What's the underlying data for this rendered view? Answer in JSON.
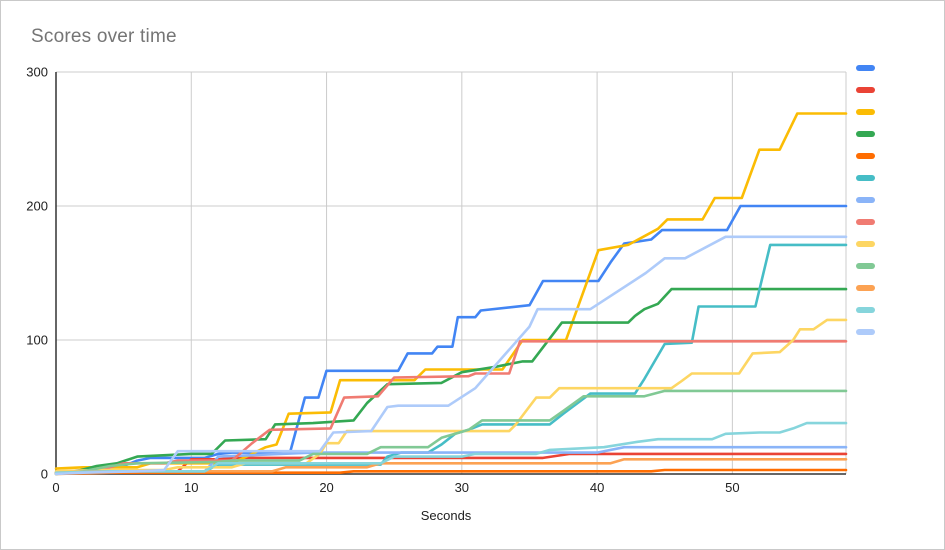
{
  "window": {
    "background": "#ffffff",
    "border_color": "#c9c9c9"
  },
  "chart_data": {
    "type": "line",
    "title": "Scores over time",
    "title_color": "#757575",
    "xlabel": "Seconds",
    "ylabel": "",
    "x_ticks": [
      0,
      10,
      20,
      30,
      40,
      50
    ],
    "y_ticks": [
      0,
      100,
      200,
      300
    ],
    "xlim": [
      0,
      58.4
    ],
    "ylim": [
      0,
      300
    ],
    "grid": true,
    "gridline_color": "#cccccc",
    "axis_line_color": "#333333",
    "tick_label_color": "#222222",
    "legend_position": "right",
    "legend_labels_visible": false,
    "series": [
      {
        "name": "series-01-blue",
        "color": "#4285F4",
        "points": [
          [
            0,
            1
          ],
          [
            3,
            4
          ],
          [
            5,
            6
          ],
          [
            6,
            10
          ],
          [
            7,
            12
          ],
          [
            11,
            12
          ],
          [
            12,
            15
          ],
          [
            13,
            16
          ],
          [
            17.3,
            16
          ],
          [
            18.4,
            57
          ],
          [
            19.4,
            57
          ],
          [
            20,
            77
          ],
          [
            25.3,
            77
          ],
          [
            26,
            90
          ],
          [
            27.8,
            90
          ],
          [
            28.2,
            95
          ],
          [
            29.3,
            95
          ],
          [
            29.7,
            117
          ],
          [
            31,
            117
          ],
          [
            31.4,
            122
          ],
          [
            35,
            126
          ],
          [
            36,
            144
          ],
          [
            40.1,
            144
          ],
          [
            41,
            158
          ],
          [
            42,
            172
          ],
          [
            44,
            175
          ],
          [
            44.8,
            182
          ],
          [
            49.6,
            182
          ],
          [
            50.6,
            200
          ],
          [
            58.4,
            200
          ]
        ]
      },
      {
        "name": "series-02-red",
        "color": "#EA4335",
        "points": [
          [
            0,
            1
          ],
          [
            4,
            1
          ],
          [
            5,
            2
          ],
          [
            9,
            2
          ],
          [
            10,
            11
          ],
          [
            12,
            11
          ],
          [
            13,
            12
          ],
          [
            36,
            12
          ],
          [
            38,
            15
          ],
          [
            58.4,
            15
          ]
        ]
      },
      {
        "name": "series-03-yellow",
        "color": "#FBBC04",
        "points": [
          [
            0,
            4
          ],
          [
            2,
            5
          ],
          [
            6,
            5
          ],
          [
            7,
            8
          ],
          [
            13,
            8
          ],
          [
            14.5,
            15
          ],
          [
            15.5,
            20
          ],
          [
            16.3,
            22
          ],
          [
            17.2,
            45
          ],
          [
            20.3,
            46
          ],
          [
            21,
            70
          ],
          [
            26.5,
            70
          ],
          [
            27.3,
            78
          ],
          [
            33,
            78
          ],
          [
            34.5,
            100
          ],
          [
            37.7,
            100
          ],
          [
            40.1,
            167
          ],
          [
            42.3,
            171
          ],
          [
            44.5,
            183
          ],
          [
            45.2,
            190
          ],
          [
            47.8,
            190
          ],
          [
            48.7,
            206
          ],
          [
            50.7,
            206
          ],
          [
            52,
            242
          ],
          [
            53.5,
            242
          ],
          [
            54.8,
            269
          ],
          [
            58.4,
            269
          ]
        ]
      },
      {
        "name": "series-04-green",
        "color": "#34A853",
        "points": [
          [
            0,
            0
          ],
          [
            1.5,
            2
          ],
          [
            3,
            6
          ],
          [
            4.5,
            8
          ],
          [
            6,
            13
          ],
          [
            10,
            15
          ],
          [
            11.5,
            15
          ],
          [
            12.5,
            25
          ],
          [
            15.5,
            26
          ],
          [
            16.2,
            37
          ],
          [
            19,
            38
          ],
          [
            22,
            40
          ],
          [
            23,
            53
          ],
          [
            24.5,
            67
          ],
          [
            28.5,
            68
          ],
          [
            30,
            76
          ],
          [
            32.5,
            80
          ],
          [
            34.5,
            84
          ],
          [
            35.2,
            84
          ],
          [
            37.4,
            113
          ],
          [
            42.3,
            113
          ],
          [
            42.8,
            118
          ],
          [
            43.5,
            123
          ],
          [
            44.5,
            127
          ],
          [
            45.5,
            138
          ],
          [
            58.4,
            138
          ]
        ]
      },
      {
        "name": "series-05-orange",
        "color": "#FF6D01",
        "points": [
          [
            0,
            0
          ],
          [
            4,
            1
          ],
          [
            21,
            1
          ],
          [
            22,
            2
          ],
          [
            44,
            2
          ],
          [
            45,
            3
          ],
          [
            58.4,
            3
          ]
        ]
      },
      {
        "name": "series-06-teal",
        "color": "#46BDC6",
        "points": [
          [
            0,
            1
          ],
          [
            4,
            2
          ],
          [
            11,
            2
          ],
          [
            12,
            7
          ],
          [
            24,
            7
          ],
          [
            24.5,
            13
          ],
          [
            25.5,
            16
          ],
          [
            27.5,
            16
          ],
          [
            28.5,
            22
          ],
          [
            29.5,
            30
          ],
          [
            30.5,
            33
          ],
          [
            31.5,
            37
          ],
          [
            36.5,
            37
          ],
          [
            37.5,
            45
          ],
          [
            39.5,
            60
          ],
          [
            42.8,
            60
          ],
          [
            43.5,
            71
          ],
          [
            45,
            97
          ],
          [
            47,
            98
          ],
          [
            47.5,
            125
          ],
          [
            51.7,
            125
          ],
          [
            52.8,
            171
          ],
          [
            58.4,
            171
          ]
        ]
      },
      {
        "name": "series-07-light-blue",
        "color": "#8AB4F8",
        "points": [
          [
            0,
            1
          ],
          [
            5,
            2
          ],
          [
            11,
            2
          ],
          [
            12,
            13
          ],
          [
            19,
            16
          ],
          [
            40,
            16
          ],
          [
            42,
            20
          ],
          [
            58.4,
            20
          ]
        ]
      },
      {
        "name": "series-08-salmon",
        "color": "#F07B72",
        "points": [
          [
            0,
            1
          ],
          [
            2,
            2
          ],
          [
            4,
            5
          ],
          [
            5,
            8
          ],
          [
            8,
            8
          ],
          [
            9,
            10
          ],
          [
            13,
            10
          ],
          [
            14.5,
            23
          ],
          [
            15.8,
            33
          ],
          [
            20.3,
            34
          ],
          [
            21.3,
            57
          ],
          [
            23.8,
            58
          ],
          [
            25,
            72
          ],
          [
            30.5,
            73
          ],
          [
            31,
            75
          ],
          [
            33.5,
            75
          ],
          [
            34.3,
            99
          ],
          [
            58.4,
            99
          ]
        ]
      },
      {
        "name": "series-09-light-yellow",
        "color": "#FDD663",
        "points": [
          [
            0,
            2
          ],
          [
            3,
            3
          ],
          [
            8,
            3
          ],
          [
            9,
            5
          ],
          [
            13,
            5
          ],
          [
            14,
            8
          ],
          [
            18.5,
            8
          ],
          [
            19.5,
            15
          ],
          [
            20,
            23
          ],
          [
            20.9,
            23
          ],
          [
            21.5,
            32
          ],
          [
            33.5,
            32
          ],
          [
            34,
            37
          ],
          [
            35.5,
            57
          ],
          [
            36.5,
            57
          ],
          [
            37.2,
            64
          ],
          [
            45.5,
            64
          ],
          [
            46.2,
            69
          ],
          [
            47,
            75
          ],
          [
            50.5,
            75
          ],
          [
            51.5,
            90
          ],
          [
            53.5,
            91
          ],
          [
            54.5,
            100
          ],
          [
            55,
            108
          ],
          [
            56,
            108
          ],
          [
            57,
            115
          ],
          [
            58.4,
            115
          ]
        ]
      },
      {
        "name": "series-10-light-green",
        "color": "#81C995",
        "points": [
          [
            0,
            0
          ],
          [
            2,
            2
          ],
          [
            4,
            6
          ],
          [
            6,
            8
          ],
          [
            12,
            9
          ],
          [
            13,
            10
          ],
          [
            18,
            10
          ],
          [
            19,
            15
          ],
          [
            23,
            15
          ],
          [
            24,
            20
          ],
          [
            27.5,
            20
          ],
          [
            28.5,
            27
          ],
          [
            29.5,
            30
          ],
          [
            30.5,
            33
          ],
          [
            31.5,
            40
          ],
          [
            36.5,
            40
          ],
          [
            37.5,
            47
          ],
          [
            39,
            58
          ],
          [
            43.5,
            58
          ],
          [
            45,
            62
          ],
          [
            58.4,
            62
          ]
        ]
      },
      {
        "name": "series-11-light-orange",
        "color": "#FCA253",
        "points": [
          [
            0,
            1
          ],
          [
            3,
            2
          ],
          [
            16,
            2
          ],
          [
            17,
            5
          ],
          [
            23,
            5
          ],
          [
            24,
            8
          ],
          [
            41,
            8
          ],
          [
            42,
            11
          ],
          [
            58.4,
            11
          ]
        ]
      },
      {
        "name": "series-12-light-teal",
        "color": "#86D5DC",
        "points": [
          [
            0,
            1
          ],
          [
            4,
            2
          ],
          [
            11,
            2
          ],
          [
            12,
            8
          ],
          [
            24,
            8
          ],
          [
            25,
            13
          ],
          [
            30,
            13
          ],
          [
            31,
            15
          ],
          [
            35.5,
            15
          ],
          [
            36.5,
            18
          ],
          [
            40.5,
            20
          ],
          [
            43,
            24
          ],
          [
            44.5,
            26
          ],
          [
            48.5,
            26
          ],
          [
            49.5,
            30
          ],
          [
            52,
            31
          ],
          [
            53.5,
            31
          ],
          [
            54.5,
            34
          ],
          [
            55.5,
            38
          ],
          [
            58.4,
            38
          ]
        ]
      },
      {
        "name": "series-13-pale-blue",
        "color": "#AECBFA",
        "points": [
          [
            0,
            0
          ],
          [
            2,
            1
          ],
          [
            6,
            2
          ],
          [
            8,
            3
          ],
          [
            9,
            17
          ],
          [
            19.5,
            17
          ],
          [
            20.5,
            31
          ],
          [
            23.3,
            32
          ],
          [
            24.5,
            50
          ],
          [
            25.3,
            51
          ],
          [
            29,
            51
          ],
          [
            31,
            64
          ],
          [
            35,
            110
          ],
          [
            35.6,
            123
          ],
          [
            39.5,
            123
          ],
          [
            43.6,
            150
          ],
          [
            45,
            161
          ],
          [
            46.5,
            161
          ],
          [
            49.5,
            177
          ],
          [
            58.4,
            177
          ]
        ]
      }
    ]
  }
}
